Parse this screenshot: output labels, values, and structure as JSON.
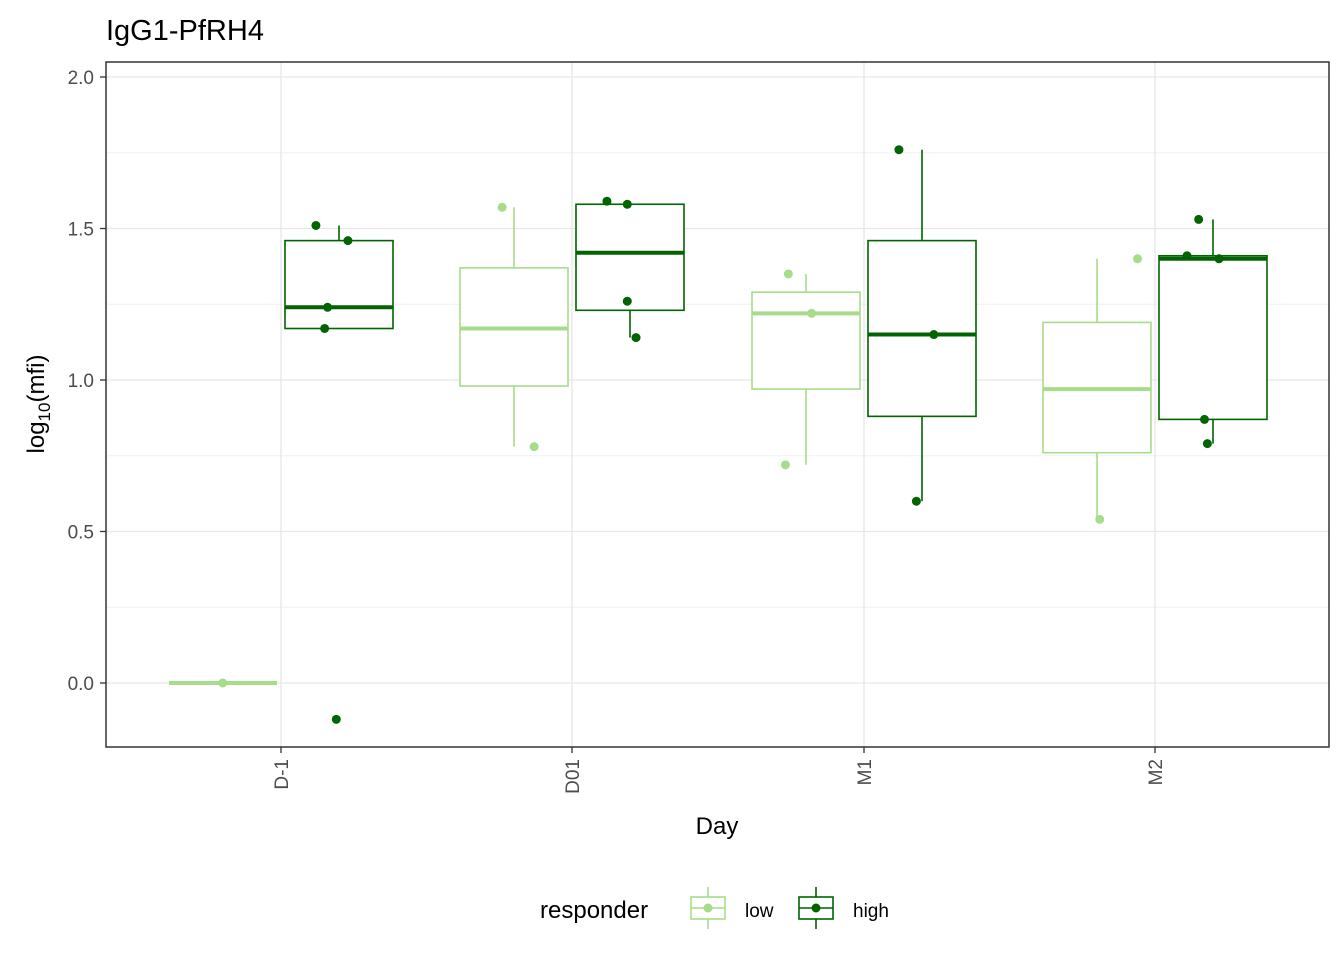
{
  "chart_data": {
    "type": "box",
    "title": "IgG1-PfRH4",
    "xlabel": "Day",
    "ylabel_base": "log",
    "ylabel_sub": "10",
    "ylabel_arg": "(mfi)",
    "categories": [
      "D-1",
      "D01",
      "M1",
      "M2"
    ],
    "ylim": [
      -0.22,
      2.04
    ],
    "yticks": [
      0.0,
      0.5,
      1.0,
      1.5,
      2.0
    ],
    "ytick_labels": [
      "0.0",
      "0.5",
      "1.0",
      "1.5",
      "2.0"
    ],
    "grid": true,
    "legend": {
      "title": "responder",
      "position": "bottom",
      "entries": [
        {
          "label": "low",
          "color": "#a6dc8a"
        },
        {
          "label": "high",
          "color": "#006400"
        }
      ]
    },
    "series": [
      {
        "name": "low",
        "color": "#a6dc8a",
        "boxes": [
          {
            "category": "D-1",
            "min": 0.0,
            "q1": 0.0,
            "median": 0.0,
            "q3": 0.0,
            "max": 0.0
          },
          {
            "category": "D01",
            "min": 0.78,
            "q1": 0.98,
            "median": 1.17,
            "q3": 1.37,
            "max": 1.57
          },
          {
            "category": "M1",
            "min": 0.72,
            "q1": 0.97,
            "median": 1.22,
            "q3": 1.29,
            "max": 1.35
          },
          {
            "category": "M2",
            "min": 0.54,
            "q1": 0.76,
            "median": 0.97,
            "q3": 1.19,
            "max": 1.4
          }
        ],
        "points": [
          {
            "category": "D-1",
            "jitter": -0.2,
            "y": 0.0
          },
          {
            "category": "D01",
            "jitter": -0.24,
            "y": 1.57
          },
          {
            "category": "D01",
            "jitter": -0.13,
            "y": 0.78
          },
          {
            "category": "M1",
            "jitter": -0.26,
            "y": 1.35
          },
          {
            "category": "M1",
            "jitter": -0.18,
            "y": 1.22
          },
          {
            "category": "M1",
            "jitter": -0.27,
            "y": 0.72
          },
          {
            "category": "M2",
            "jitter": -0.06,
            "y": 1.4
          },
          {
            "category": "M2",
            "jitter": -0.19,
            "y": 0.54
          }
        ]
      },
      {
        "name": "high",
        "color": "#006400",
        "boxes": [
          {
            "category": "D-1",
            "min": 1.17,
            "q1": 1.17,
            "median": 1.24,
            "q3": 1.46,
            "max": 1.51
          },
          {
            "category": "D01",
            "min": 1.14,
            "q1": 1.23,
            "median": 1.42,
            "q3": 1.58,
            "max": 1.59
          },
          {
            "category": "M1",
            "min": 0.6,
            "q1": 0.88,
            "median": 1.15,
            "q3": 1.46,
            "max": 1.76
          },
          {
            "category": "M2",
            "min": 0.79,
            "q1": 0.87,
            "median": 1.4,
            "q3": 1.41,
            "max": 1.53
          }
        ],
        "points": [
          {
            "category": "D-1",
            "jitter": 0.12,
            "y": 1.51
          },
          {
            "category": "D-1",
            "jitter": 0.23,
            "y": 1.46
          },
          {
            "category": "D-1",
            "jitter": 0.16,
            "y": 1.24
          },
          {
            "category": "D-1",
            "jitter": 0.15,
            "y": 1.17
          },
          {
            "category": "D-1",
            "jitter": 0.19,
            "y": -0.12
          },
          {
            "category": "D01",
            "jitter": 0.12,
            "y": 1.59
          },
          {
            "category": "D01",
            "jitter": 0.19,
            "y": 1.58
          },
          {
            "category": "D01",
            "jitter": 0.19,
            "y": 1.26
          },
          {
            "category": "D01",
            "jitter": 0.22,
            "y": 1.14
          },
          {
            "category": "M1",
            "jitter": 0.12,
            "y": 1.76
          },
          {
            "category": "M1",
            "jitter": 0.24,
            "y": 1.15
          },
          {
            "category": "M1",
            "jitter": 0.18,
            "y": 0.6
          },
          {
            "category": "M2",
            "jitter": 0.15,
            "y": 1.53
          },
          {
            "category": "M2",
            "jitter": 0.11,
            "y": 1.41
          },
          {
            "category": "M2",
            "jitter": 0.22,
            "y": 1.4
          },
          {
            "category": "M2",
            "jitter": 0.17,
            "y": 0.87
          },
          {
            "category": "M2",
            "jitter": 0.18,
            "y": 0.79
          }
        ]
      }
    ]
  }
}
